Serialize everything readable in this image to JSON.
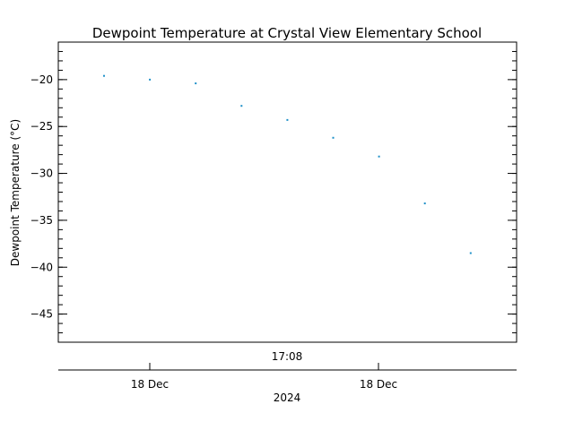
{
  "chart_data": {
    "type": "scatter",
    "title": "Dewpoint Temperature at Crystal View Elementary School",
    "ylabel": "Dewpoint Temperature (°C)",
    "ylim": [
      -48,
      -16
    ],
    "yticks": [
      -20,
      -25,
      -30,
      -35,
      -40,
      -45
    ],
    "yticks_minor_step": 1,
    "x_center_label": "17:08",
    "x_tick_labels": [
      "18 Dec",
      "18 Dec"
    ],
    "x_year_label": "2024",
    "grid": false,
    "point_color": "#1e90c8",
    "points": [
      {
        "y": -19.6
      },
      {
        "y": -20.0
      },
      {
        "y": -20.4
      },
      {
        "y": -22.8
      },
      {
        "y": -24.3
      },
      {
        "y": -26.2
      },
      {
        "y": -28.2
      },
      {
        "y": -33.2
      },
      {
        "y": -38.5
      }
    ]
  }
}
